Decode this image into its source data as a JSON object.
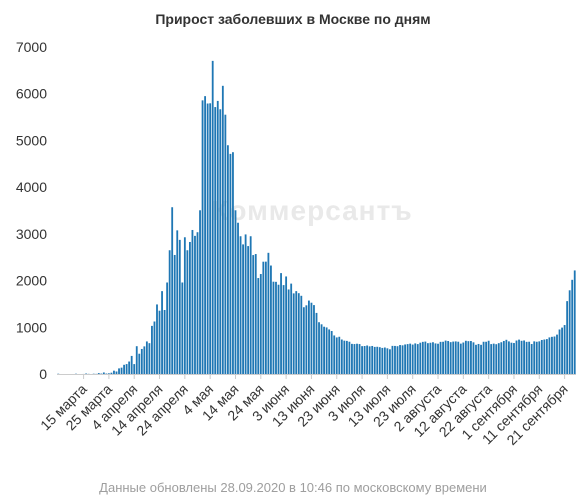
{
  "colors": {
    "bar": "#1f77b4",
    "bar_edge": "#1a6799",
    "axis": "#cccccc",
    "text": "#333333",
    "footer": "#9e9e9e"
  },
  "watermark": "Коммерсантъ",
  "footer": "Данные обновлены 28.09.2020 в 10:46 по московскому времени",
  "chart_data": {
    "type": "bar",
    "title": "Прирост заболевших в Москве по дням",
    "xlabel": "",
    "ylabel": "",
    "ylim": [
      0,
      7000
    ],
    "yticks": [
      0,
      1000,
      2000,
      3000,
      4000,
      5000,
      6000,
      7000
    ],
    "grid": false,
    "x_start": "2020-03-05",
    "x_end": "2020-09-27",
    "xtick_labels": [
      "15 марта",
      "25 марта",
      "4 апреля",
      "14 апреля",
      "24 апреля",
      "4 мая",
      "14 мая",
      "24 мая",
      "3 июня",
      "13 июня",
      "23 июня",
      "3 июля",
      "13 июля",
      "23 июля",
      "2 августа",
      "12 августа",
      "22 августа",
      "1 сентября",
      "11 сентября",
      "21 сентября"
    ],
    "values": [
      6,
      0,
      0,
      0,
      0,
      0,
      0,
      6,
      0,
      0,
      1,
      10,
      3,
      0,
      6,
      3,
      20,
      9,
      33,
      10,
      15,
      28,
      71,
      54,
      120,
      136,
      197,
      212,
      267,
      387,
      212,
      595,
      434,
      536,
      591,
      697,
      660,
      1030,
      1124,
      1489,
      1355,
      1774,
      1370,
      1959,
      2649,
      3570,
      2548,
      3075,
      2871,
      1959,
      2927,
      2649,
      2826,
      3083,
      2957,
      3035,
      3505,
      5858,
      5948,
      5790,
      5795,
      6703,
      5714,
      5846,
      5667,
      6169,
      5551,
      4897,
      4712,
      4748,
      3505,
      3238,
      2949,
      2774,
      2988,
      2738,
      2949,
      2546,
      2568,
      2054,
      2140,
      2404,
      2405,
      2594,
      2322,
      1976,
      1973,
      1911,
      2160,
      1903,
      2088,
      1810,
      1935,
      1726,
      1774,
      1730,
      1674,
      1429,
      1470,
      1572,
      1526,
      1475,
      1308,
      1108,
      1064,
      1012,
      997,
      954,
      920,
      825,
      783,
      797,
      738,
      714,
      709,
      691,
      645,
      641,
      648,
      641,
      596,
      599,
      610,
      592,
      600,
      580,
      583,
      574,
      558,
      567,
      550,
      529,
      602,
      601,
      595,
      620,
      614,
      632,
      640,
      650,
      630,
      655,
      640,
      670,
      688,
      694,
      660,
      669,
      680,
      655,
      648,
      688,
      690,
      715,
      706,
      682,
      694,
      698,
      691,
      650,
      674,
      711,
      703,
      706,
      678,
      625,
      643,
      625,
      690,
      690,
      712,
      640,
      650,
      638,
      660,
      680,
      707,
      732,
      698,
      670,
      663,
      717,
      736,
      711,
      718,
      688,
      691,
      642,
      699,
      690,
      699,
      728,
      738,
      747,
      783,
      796,
      803,
      843,
      953,
      993,
      1048,
      1560,
      1792,
      2016,
      2217
    ]
  }
}
